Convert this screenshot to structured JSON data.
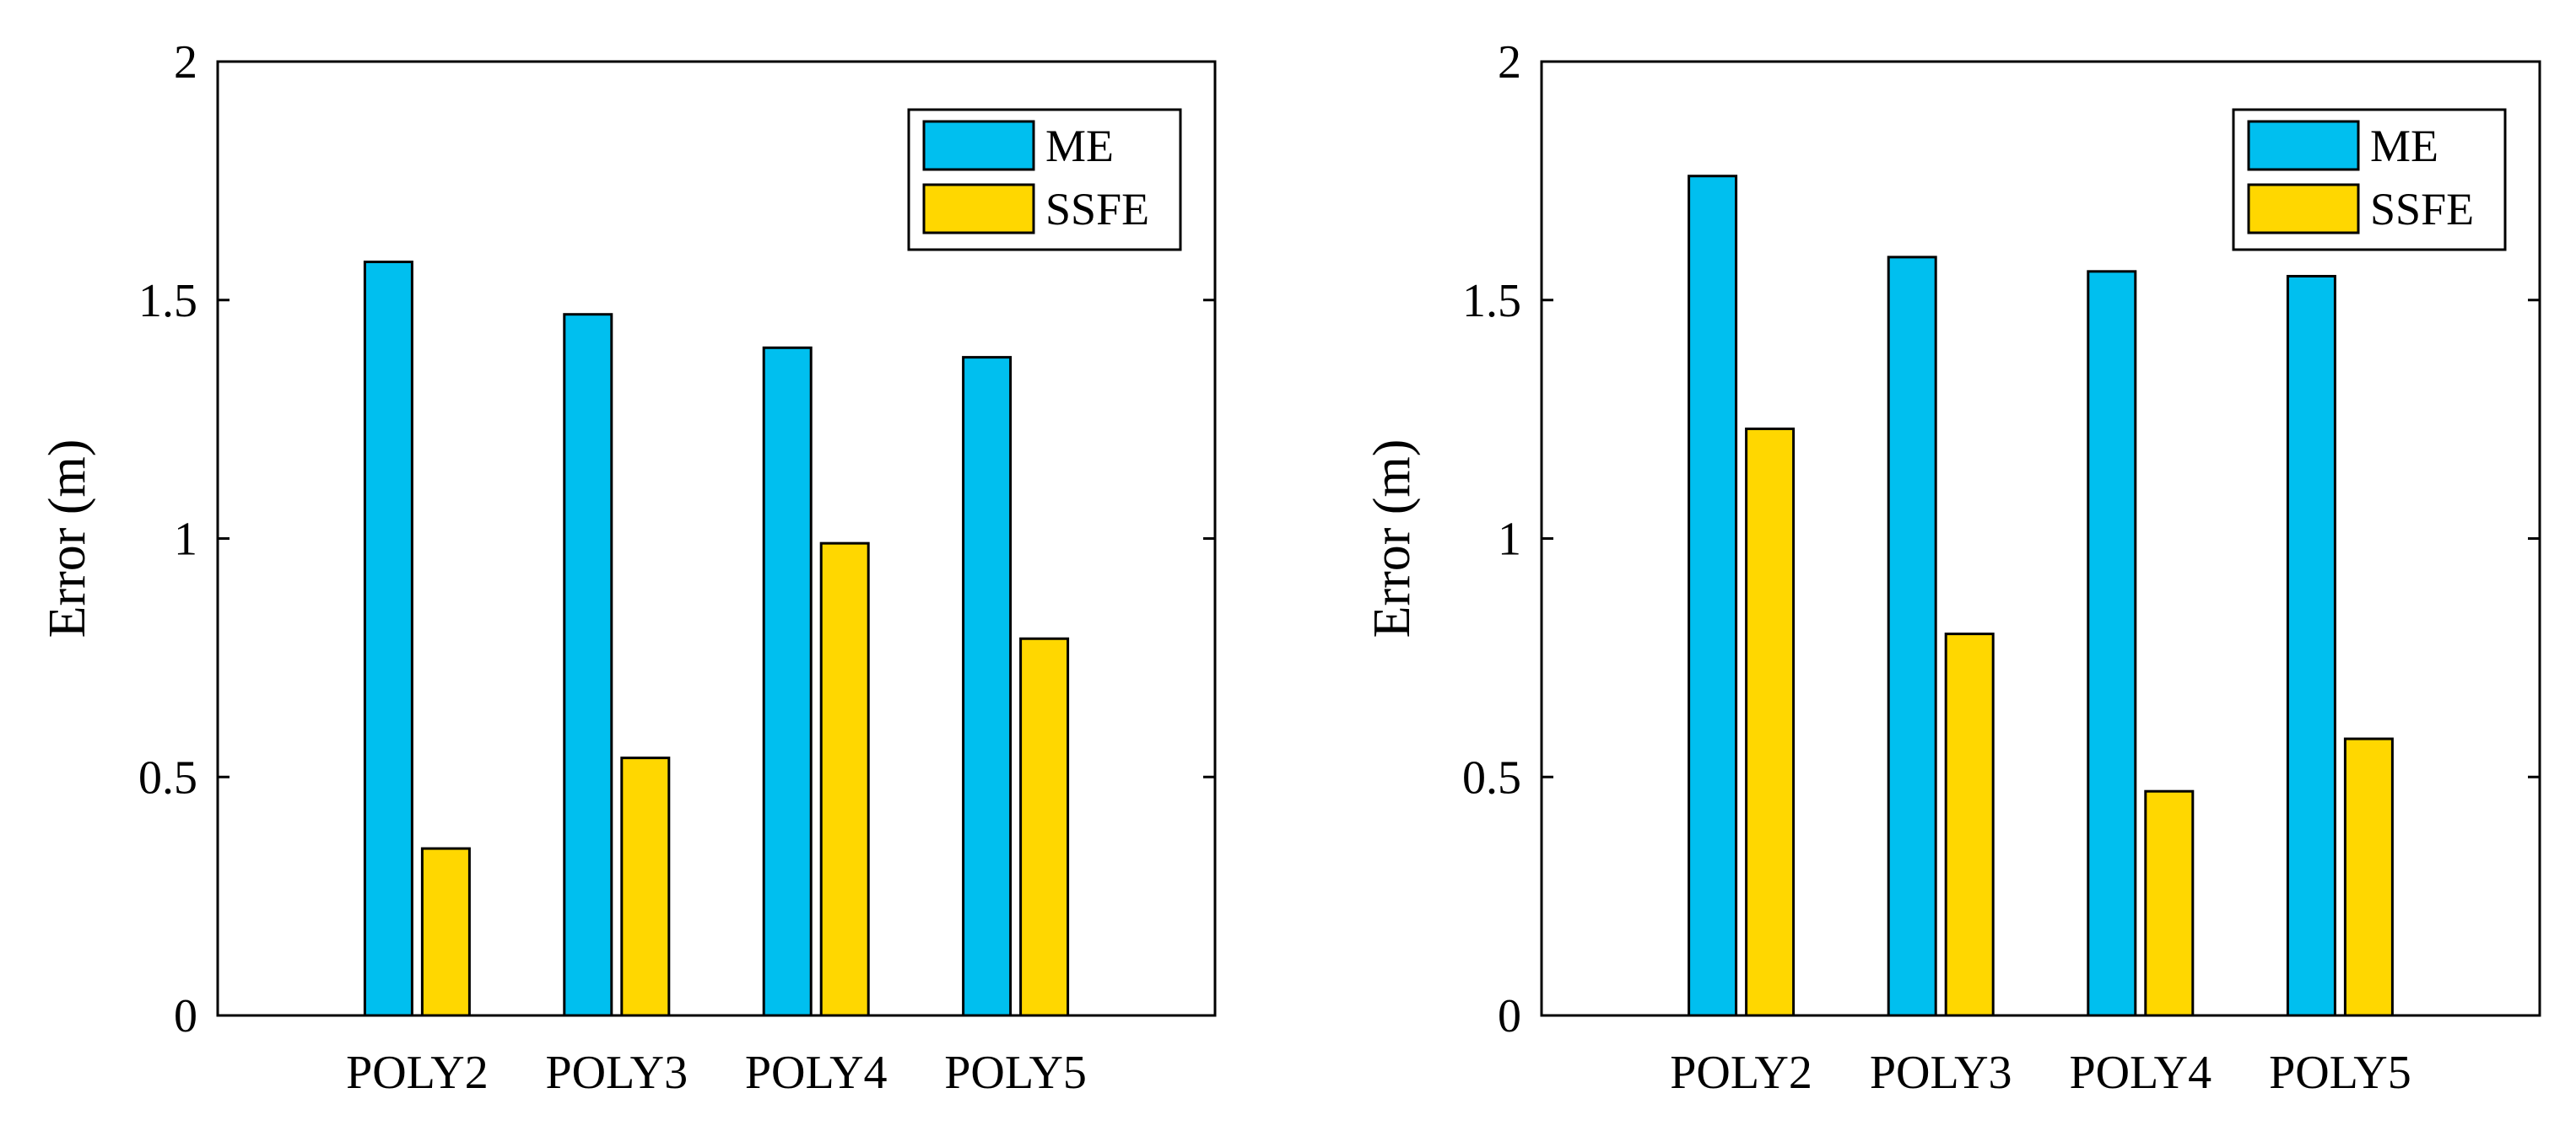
{
  "chart_data": [
    {
      "type": "bar",
      "categories": [
        "POLY2",
        "POLY3",
        "POLY4",
        "POLY5"
      ],
      "series": [
        {
          "name": "ME",
          "values": [
            1.58,
            1.47,
            1.4,
            1.38
          ],
          "color": "#00BFEF"
        },
        {
          "name": "SSFE",
          "values": [
            0.35,
            0.54,
            0.99,
            0.79
          ],
          "color": "#FFD700"
        }
      ],
      "title": "",
      "xlabel": "",
      "ylabel": "Error (m)",
      "ylim": [
        0,
        2
      ],
      "yticks": [
        0,
        0.5,
        1,
        1.5,
        2
      ],
      "ytick_labels": [
        "0",
        "0.5",
        "1",
        "1.5",
        "2"
      ],
      "grid": false,
      "legend": {
        "position": "top-right",
        "entries": [
          "ME",
          "SSFE"
        ]
      }
    },
    {
      "type": "bar",
      "categories": [
        "POLY2",
        "POLY3",
        "POLY4",
        "POLY5"
      ],
      "series": [
        {
          "name": "ME",
          "values": [
            1.76,
            1.59,
            1.56,
            1.55
          ],
          "color": "#00BFEF"
        },
        {
          "name": "SSFE",
          "values": [
            1.23,
            0.8,
            0.47,
            0.58
          ],
          "color": "#FFD700"
        }
      ],
      "title": "",
      "xlabel": "",
      "ylabel": "Error (m)",
      "ylim": [
        0,
        2
      ],
      "yticks": [
        0,
        0.5,
        1,
        1.5,
        2
      ],
      "ytick_labels": [
        "0",
        "0.5",
        "1",
        "1.5",
        "2"
      ],
      "grid": false,
      "legend": {
        "position": "top-right",
        "entries": [
          "ME",
          "SSFE"
        ]
      }
    }
  ]
}
